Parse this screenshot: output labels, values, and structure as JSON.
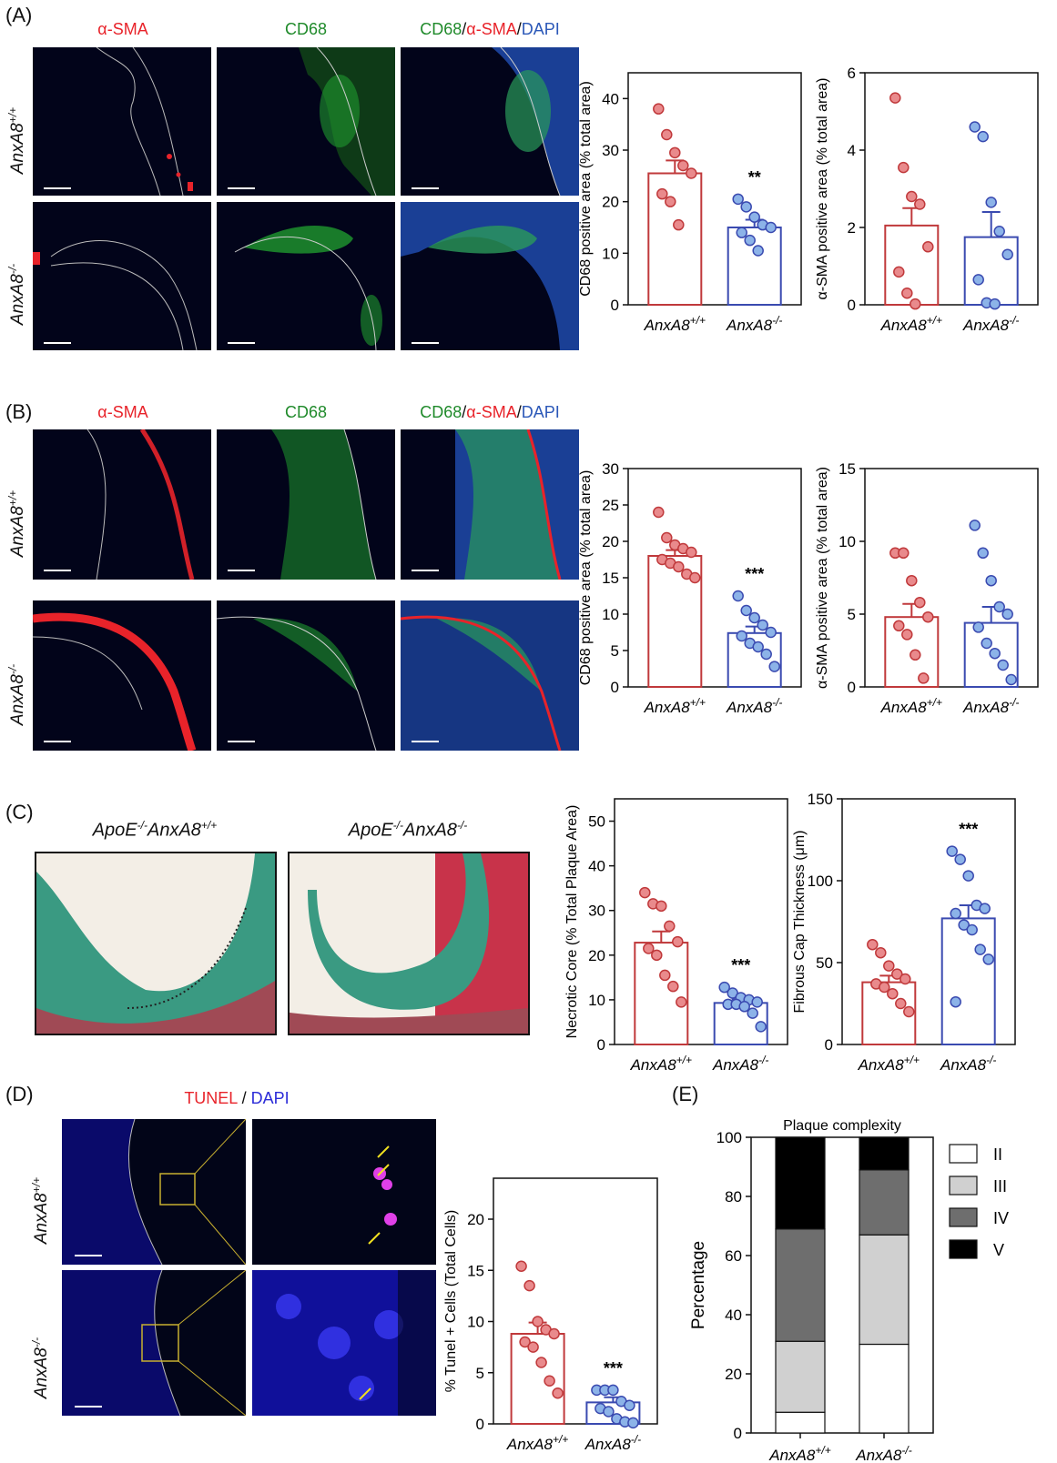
{
  "panels": {
    "A": {
      "label": "(A)",
      "headers": [
        "α-SMA",
        "CD68",
        "CD68/α-SMA/DAPI"
      ],
      "rows": [
        "AnxA8+/+",
        "AnxA8-/-"
      ]
    },
    "B": {
      "label": "(B)",
      "headers": [
        "α-SMA",
        "CD68",
        "CD68/α-SMA/DAPI"
      ],
      "rows": [
        "AnxA8+/+",
        "AnxA8-/-"
      ]
    },
    "C": {
      "label": "(C)",
      "images": [
        "ApoE-/-AnxA8+/+",
        "ApoE-/-AnxA8-/-"
      ]
    },
    "D": {
      "label": "(D)",
      "header_tunel": "TUNEL",
      "header_sep": " / ",
      "header_dapi": "DAPI",
      "rows": [
        "AnxA8+/+",
        "AnxA8-/-"
      ]
    },
    "E": {
      "label": "(E)"
    }
  },
  "header_parts": {
    "cd68": "CD68",
    "slash1": "/",
    "asma": "α-SMA",
    "slash2": "/",
    "dapi": "DAPI"
  },
  "colors": {
    "wt": "#c0393b",
    "ko": "#3a4ab0",
    "wt_fill": "#e98a8c",
    "ko_fill": "#8cb3e8",
    "red": "#e8232a",
    "green": "#1f8a2a",
    "blue": "#2b58b8"
  },
  "chart_data": [
    {
      "id": "A1",
      "type": "bar",
      "categories": [
        "AnxA8+/+",
        "AnxA8-/-"
      ],
      "values": [
        25.5,
        15
      ],
      "sem": [
        2.5,
        1.5
      ],
      "points": [
        [
          38,
          33,
          29.5,
          27,
          25.5,
          21.5,
          20,
          15.5
        ],
        [
          20.5,
          19,
          17,
          15.5,
          15,
          14,
          12.5,
          10.5
        ]
      ],
      "ylabel": "CD68 positive area (% total area)",
      "ylim": [
        0,
        45
      ],
      "ticks": [
        0,
        10,
        20,
        30,
        40
      ],
      "annotations": [
        "",
        "**"
      ]
    },
    {
      "id": "A2",
      "type": "bar",
      "categories": [
        "AnxA8+/+",
        "AnxA8-/-"
      ],
      "values": [
        2.05,
        1.75
      ],
      "sem": [
        0.45,
        0.65
      ],
      "points": [
        [
          5.35,
          3.55,
          2.8,
          2.6,
          1.5,
          0.85,
          0.3,
          0.02
        ],
        [
          4.6,
          4.35,
          2.65,
          1.9,
          1.3,
          0.65,
          0.05,
          0.02
        ]
      ],
      "ylabel": "α-SMA positive area (% total area)",
      "ylim": [
        0,
        6
      ],
      "ticks": [
        0,
        2,
        4,
        6
      ],
      "annotations": [
        "",
        ""
      ]
    },
    {
      "id": "B1",
      "type": "bar",
      "categories": [
        "AnxA8+/+",
        "AnxA8-/-"
      ],
      "values": [
        18,
        7.4
      ],
      "sem": [
        0.8,
        0.9
      ],
      "points": [
        [
          24,
          20.5,
          19.5,
          19,
          18.5,
          17.5,
          17,
          16.5,
          15.5,
          15
        ],
        [
          12.5,
          10.5,
          9.5,
          8.5,
          7.5,
          7,
          6,
          5.5,
          4.5,
          2.8
        ]
      ],
      "ylabel": "CD68 positive area (% total area)",
      "ylim": [
        0,
        30
      ],
      "ticks": [
        0,
        5,
        10,
        15,
        20,
        25,
        30
      ],
      "annotations": [
        "",
        "***"
      ]
    },
    {
      "id": "B2",
      "type": "bar",
      "categories": [
        "AnxA8+/+",
        "AnxA8-/-"
      ],
      "values": [
        4.8,
        4.4
      ],
      "sem": [
        0.9,
        1.1
      ],
      "points": [
        [
          9.2,
          9.2,
          7.3,
          5.8,
          4.8,
          4.2,
          3.6,
          2.2,
          0.6
        ],
        [
          11.1,
          9.2,
          7.3,
          5.5,
          5,
          4.1,
          3,
          2.3,
          1.5,
          0.5
        ]
      ],
      "ylabel": "α-SMA positive area (% total area)",
      "ylim": [
        0,
        15
      ],
      "ticks": [
        0,
        5,
        10,
        15
      ],
      "annotations": [
        "",
        ""
      ]
    },
    {
      "id": "C1",
      "type": "bar",
      "categories": [
        "AnxA8+/+",
        "AnxA8-/-"
      ],
      "values": [
        22.8,
        9.3
      ],
      "sem": [
        2.5,
        0.8
      ],
      "points": [
        [
          34,
          31.5,
          31,
          26.5,
          23,
          21.5,
          20,
          15.5,
          13,
          9.5
        ],
        [
          12.8,
          11.5,
          10.5,
          10,
          9.5,
          9,
          9,
          8.5,
          7,
          4
        ]
      ],
      "ylabel": "Necrotic Core (% Total Plaque Area)",
      "ylim": [
        0,
        55
      ],
      "ticks": [
        0,
        10,
        20,
        30,
        40,
        50
      ],
      "annotations": [
        "",
        "***"
      ]
    },
    {
      "id": "C2",
      "type": "bar",
      "categories": [
        "AnxA8+/+",
        "AnxA8-/-"
      ],
      "values": [
        38,
        77
      ],
      "sem": [
        4,
        8
      ],
      "points": [
        [
          61,
          56,
          48,
          43,
          40,
          37,
          35,
          31,
          25,
          20
        ],
        [
          118,
          113,
          103,
          85,
          83,
          80,
          73,
          70,
          58,
          52,
          26
        ]
      ],
      "ylabel": "Fibrous Cap Thickness (μm)",
      "ylim": [
        0,
        150
      ],
      "ticks": [
        0,
        50,
        100,
        150
      ],
      "annotations": [
        "",
        "***"
      ]
    },
    {
      "id": "D1",
      "type": "bar",
      "categories": [
        "AnxA8+/+",
        "AnxA8-/-"
      ],
      "values": [
        8.8,
        2.1
      ],
      "sem": [
        1.1,
        0.5
      ],
      "points": [
        [
          15.4,
          13.5,
          10,
          9.2,
          8.8,
          8,
          7.5,
          6,
          4.2,
          3
        ],
        [
          3.3,
          3.3,
          3.3,
          2.2,
          1.8,
          1.5,
          1.2,
          0.5,
          0.2,
          0.1
        ]
      ],
      "ylabel": "% Tunel + Cells (Total Cells)",
      "ylim": [
        0,
        24
      ],
      "ticks": [
        0,
        5,
        10,
        15,
        20
      ],
      "annotations": [
        "",
        "***"
      ]
    },
    {
      "id": "E",
      "type": "bar",
      "stacked": true,
      "title": "Plaque complexity",
      "categories": [
        "AnxA8+/+",
        "AnxA8-/-"
      ],
      "series": [
        {
          "name": "II",
          "values": [
            7,
            30
          ],
          "color": "#ffffff"
        },
        {
          "name": "III",
          "values": [
            24,
            37
          ],
          "color": "#d0d0d0"
        },
        {
          "name": "IV",
          "values": [
            38,
            22
          ],
          "color": "#6e6e6e"
        },
        {
          "name": "V",
          "values": [
            31,
            11
          ],
          "color": "#000000"
        }
      ],
      "ylabel": "Percentage",
      "ylim": [
        0,
        100
      ],
      "ticks": [
        0,
        20,
        40,
        60,
        80,
        100
      ]
    }
  ]
}
